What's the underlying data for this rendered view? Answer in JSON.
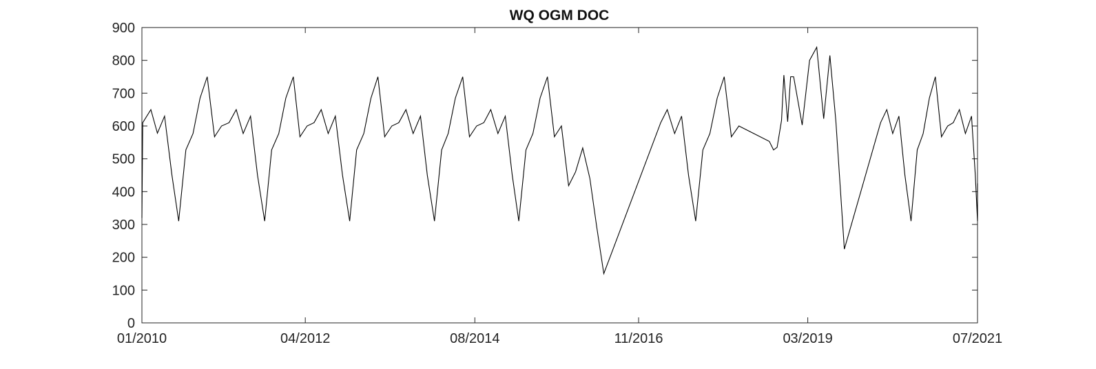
{
  "chart_data": {
    "type": "line",
    "title": "WQ OGM DOC",
    "xlabel": "",
    "ylabel": "",
    "ylim": [
      0,
      900
    ],
    "yticks": [
      0,
      100,
      200,
      300,
      400,
      500,
      600,
      700,
      800,
      900
    ],
    "xlim": [
      "2010-01-01",
      "2021-07-01"
    ],
    "xticks": [
      {
        "date": "2010-01-01",
        "label": "01/2010"
      },
      {
        "date": "2012-04-01",
        "label": "04/2012"
      },
      {
        "date": "2014-08-01",
        "label": "08/2014"
      },
      {
        "date": "2016-11-01",
        "label": "11/2016"
      },
      {
        "date": "2019-03-01",
        "label": "03/2019"
      },
      {
        "date": "2021-07-01",
        "label": "07/2021"
      }
    ],
    "grid": false,
    "line_color": "#000000",
    "series": [
      {
        "points": [
          [
            "2010-01-01",
            320
          ],
          [
            "2010-01-05",
            610
          ],
          [
            "2010-02-15",
            650
          ],
          [
            "2010-03-20",
            578
          ],
          [
            "2010-04-25",
            630
          ],
          [
            "2010-06-01",
            450
          ],
          [
            "2010-07-05",
            310
          ],
          [
            "2010-08-10",
            527
          ],
          [
            "2010-09-15",
            577
          ],
          [
            "2010-10-20",
            685
          ],
          [
            "2010-11-25",
            750
          ],
          [
            "2011-01-01",
            567
          ],
          [
            "2011-02-05",
            600
          ],
          [
            "2011-03-15",
            610
          ],
          [
            "2011-04-20",
            650
          ],
          [
            "2011-05-25",
            577
          ],
          [
            "2011-07-01",
            630
          ],
          [
            "2011-08-05",
            450
          ],
          [
            "2011-09-10",
            310
          ],
          [
            "2011-10-15",
            527
          ],
          [
            "2011-11-20",
            577
          ],
          [
            "2011-12-25",
            685
          ],
          [
            "2012-02-01",
            750
          ],
          [
            "2012-03-05",
            567
          ],
          [
            "2012-04-10",
            600
          ],
          [
            "2012-05-15",
            610
          ],
          [
            "2012-06-20",
            650
          ],
          [
            "2012-07-25",
            577
          ],
          [
            "2012-08-30",
            630
          ],
          [
            "2012-10-05",
            450
          ],
          [
            "2012-11-10",
            310
          ],
          [
            "2012-12-15",
            527
          ],
          [
            "2013-01-20",
            577
          ],
          [
            "2013-02-25",
            685
          ],
          [
            "2013-04-01",
            750
          ],
          [
            "2013-05-05",
            567
          ],
          [
            "2013-06-10",
            600
          ],
          [
            "2013-07-15",
            610
          ],
          [
            "2013-08-20",
            650
          ],
          [
            "2013-09-25",
            577
          ],
          [
            "2013-11-01",
            630
          ],
          [
            "2013-12-05",
            450
          ],
          [
            "2014-01-10",
            310
          ],
          [
            "2014-02-15",
            527
          ],
          [
            "2014-03-20",
            577
          ],
          [
            "2014-04-25",
            685
          ],
          [
            "2014-06-01",
            750
          ],
          [
            "2014-07-05",
            567
          ],
          [
            "2014-08-10",
            600
          ],
          [
            "2014-09-15",
            610
          ],
          [
            "2014-10-20",
            650
          ],
          [
            "2014-11-25",
            577
          ],
          [
            "2015-01-01",
            630
          ],
          [
            "2015-02-05",
            450
          ],
          [
            "2015-03-10",
            310
          ],
          [
            "2015-04-15",
            527
          ],
          [
            "2015-05-20",
            577
          ],
          [
            "2015-06-25",
            685
          ],
          [
            "2015-08-01",
            750
          ],
          [
            "2015-09-05",
            567
          ],
          [
            "2015-10-10",
            600
          ],
          [
            "2015-11-15",
            418
          ],
          [
            "2015-12-20",
            460
          ],
          [
            "2016-01-25",
            533
          ],
          [
            "2016-03-01",
            440
          ],
          [
            "2016-04-05",
            290
          ],
          [
            "2016-05-10",
            150
          ],
          [
            "2017-02-20",
            610
          ],
          [
            "2017-03-25",
            650
          ],
          [
            "2017-05-01",
            577
          ],
          [
            "2017-06-05",
            630
          ],
          [
            "2017-07-10",
            450
          ],
          [
            "2017-08-15",
            310
          ],
          [
            "2017-09-20",
            527
          ],
          [
            "2017-10-25",
            577
          ],
          [
            "2017-12-01",
            685
          ],
          [
            "2018-01-05",
            750
          ],
          [
            "2018-02-10",
            567
          ],
          [
            "2018-03-20",
            600
          ],
          [
            "2018-08-20",
            553
          ],
          [
            "2018-09-10",
            527
          ],
          [
            "2018-09-28",
            535
          ],
          [
            "2018-10-20",
            617
          ],
          [
            "2018-11-01",
            755
          ],
          [
            "2018-11-20",
            613
          ],
          [
            "2018-12-05",
            750
          ],
          [
            "2018-12-20",
            750
          ],
          [
            "2019-02-01",
            603
          ],
          [
            "2019-03-10",
            800
          ],
          [
            "2019-04-15",
            840
          ],
          [
            "2019-05-20",
            622
          ],
          [
            "2019-06-20",
            815
          ],
          [
            "2019-07-20",
            617
          ],
          [
            "2019-09-01",
            225
          ],
          [
            "2020-03-01",
            610
          ],
          [
            "2020-04-01",
            650
          ],
          [
            "2020-05-01",
            577
          ],
          [
            "2020-06-01",
            630
          ],
          [
            "2020-07-01",
            450
          ],
          [
            "2020-08-01",
            310
          ],
          [
            "2020-09-01",
            527
          ],
          [
            "2020-10-01",
            577
          ],
          [
            "2020-11-01",
            685
          ],
          [
            "2020-12-01",
            750
          ],
          [
            "2021-01-01",
            567
          ],
          [
            "2021-02-01",
            600
          ],
          [
            "2021-03-01",
            610
          ],
          [
            "2021-04-01",
            650
          ],
          [
            "2021-05-01",
            577
          ],
          [
            "2021-06-01",
            630
          ],
          [
            "2021-06-20",
            450
          ],
          [
            "2021-07-01",
            310
          ],
          [
            "2021-07-01",
            425
          ]
        ]
      }
    ]
  }
}
